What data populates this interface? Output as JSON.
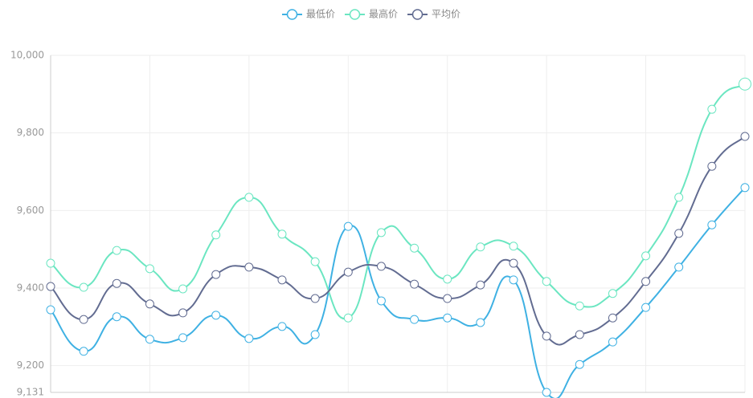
{
  "chart_data": {
    "type": "line",
    "categories": [
      null,
      null,
      null,
      null,
      null,
      null,
      null,
      null,
      null,
      null,
      null,
      null,
      null,
      null,
      null,
      null,
      null,
      null,
      null,
      null,
      null,
      null
    ],
    "series": [
      {
        "name": "最低价",
        "color": "#3fb1e3",
        "values": [
          9344,
          9237,
          9326,
          9268,
          9272,
          9330,
          9270,
          9301,
          9280,
          9559,
          9367,
          9319,
          9323,
          9311,
          9421,
          9131,
          9203,
          9261,
          9350,
          9454,
          9563,
          9659
        ]
      },
      {
        "name": "最高价",
        "color": "#6be6c1",
        "values": [
          9464,
          9402,
          9497,
          9450,
          9398,
          9537,
          9634,
          9539,
          9468,
          9323,
          9543,
          9503,
          9423,
          9506,
          9508,
          9417,
          9354,
          9386,
          9483,
          9634,
          9861,
          9926
        ]
      },
      {
        "name": "平均价",
        "color": "#626c91",
        "values": [
          9404,
          9319,
          9412,
          9359,
          9336,
          9435,
          9454,
          9421,
          9373,
          9441,
          9456,
          9410,
          9373,
          9408,
          9464,
          9276,
          9280,
          9323,
          9417,
          9541,
          9714,
          9791
        ]
      }
    ],
    "ylim": [
      9131,
      10000
    ],
    "yticks": [
      {
        "value": 9131,
        "label": "9,131"
      },
      {
        "value": 9200,
        "label": "9,200"
      },
      {
        "value": 9400,
        "label": "9,400"
      },
      {
        "value": 9600,
        "label": "9,600"
      },
      {
        "value": 9800,
        "label": "9,800"
      },
      {
        "value": 10000,
        "label": "10,000"
      }
    ],
    "grid": true,
    "legend": "top"
  }
}
